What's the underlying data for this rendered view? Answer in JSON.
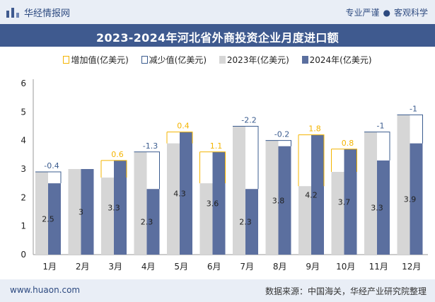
{
  "header": {
    "site_name": "华经情报网",
    "tag_left": "专业严谨",
    "tag_right": "客观科学",
    "logo_icon": "bar-logo-icon"
  },
  "footer": {
    "url": "www.huaon.com",
    "source": "数据来源：中国海关，华经产业研究院整理"
  },
  "colors": {
    "bar_2023": "#d6d6d6",
    "bar_2024": "#5b6f9f",
    "increase": "#f4b400",
    "decrease": "#3b5c8f",
    "title_bg": "#3f5a8f"
  },
  "chart_data": {
    "type": "bar",
    "title": "2023-2024年河北省外商投资企业月度进口额",
    "categories": [
      "1月",
      "2月",
      "3月",
      "4月",
      "5月",
      "6月",
      "7月",
      "8月",
      "9月",
      "10月",
      "11月",
      "12月"
    ],
    "series": [
      {
        "name": "2023年(亿美元)",
        "values": [
          2.9,
          3.0,
          2.7,
          3.6,
          3.9,
          2.5,
          4.5,
          4.0,
          2.4,
          2.9,
          4.3,
          4.9
        ]
      },
      {
        "name": "2024年(亿美元)",
        "values": [
          2.5,
          3,
          3.3,
          2.3,
          4.3,
          3.6,
          2.3,
          3.8,
          4.2,
          3.7,
          3.3,
          3.9
        ]
      }
    ],
    "change_labels": [
      "-0.4",
      "",
      "0.6",
      "-1.3",
      "0.4",
      "1.1",
      "-2.2",
      "-0.2",
      "1.8",
      "0.8",
      "-1",
      "-1"
    ],
    "value_labels_2024": [
      "2.5",
      "3",
      "3.3",
      "2.3",
      "4.3",
      "3.6",
      "2.3",
      "3.8",
      "4.2",
      "3.7",
      "3.3",
      "3.9"
    ],
    "legend": [
      "增加值(亿美元)",
      "减少值(亿美元)",
      "2023年(亿美元)",
      "2024年(亿美元)"
    ],
    "legend_position": "top",
    "ylim": [
      0,
      6
    ],
    "yticks": [
      "0",
      "1",
      "2",
      "3",
      "4",
      "5",
      "6"
    ],
    "xlabel": "",
    "ylabel": "",
    "grid": false
  }
}
